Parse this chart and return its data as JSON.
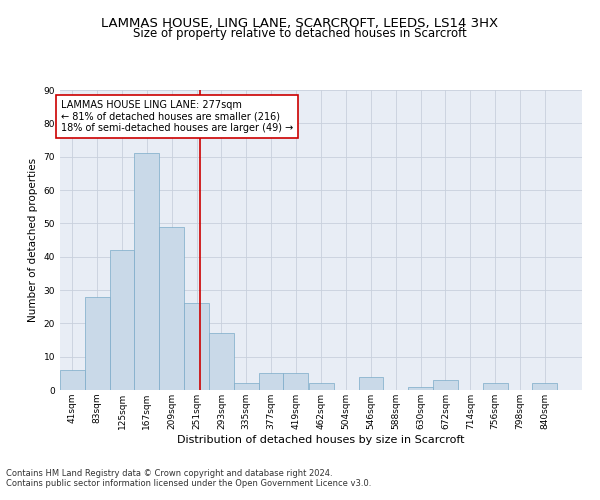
{
  "title1": "LAMMAS HOUSE, LING LANE, SCARCROFT, LEEDS, LS14 3HX",
  "title2": "Size of property relative to detached houses in Scarcroft",
  "xlabel": "Distribution of detached houses by size in Scarcroft",
  "ylabel": "Number of detached properties",
  "footnote1": "Contains HM Land Registry data © Crown copyright and database right 2024.",
  "footnote2": "Contains public sector information licensed under the Open Government Licence v3.0.",
  "bar_edges": [
    41,
    83,
    125,
    167,
    209,
    251,
    293,
    335,
    377,
    419,
    462,
    504,
    546,
    588,
    630,
    672,
    714,
    756,
    798,
    840,
    882
  ],
  "bar_heights": [
    6,
    28,
    42,
    71,
    49,
    26,
    17,
    2,
    5,
    5,
    2,
    0,
    4,
    0,
    1,
    3,
    0,
    2,
    0,
    2
  ],
  "bar_color": "#c9d9e8",
  "bar_edgecolor": "#7aaac8",
  "vline_x": 277,
  "vline_color": "#cc0000",
  "annotation_text": "LAMMAS HOUSE LING LANE: 277sqm\n← 81% of detached houses are smaller (216)\n18% of semi-detached houses are larger (49) →",
  "annotation_box_color": "#cc0000",
  "ylim": [
    0,
    90
  ],
  "yticks": [
    0,
    10,
    20,
    30,
    40,
    50,
    60,
    70,
    80,
    90
  ],
  "grid_color": "#c8d0dc",
  "background_color": "#e8edf5",
  "title_fontsize": 9.5,
  "subtitle_fontsize": 8.5,
  "xlabel_fontsize": 8,
  "ylabel_fontsize": 7.5,
  "tick_fontsize": 6.5,
  "annotation_fontsize": 7,
  "footnote_fontsize": 6
}
